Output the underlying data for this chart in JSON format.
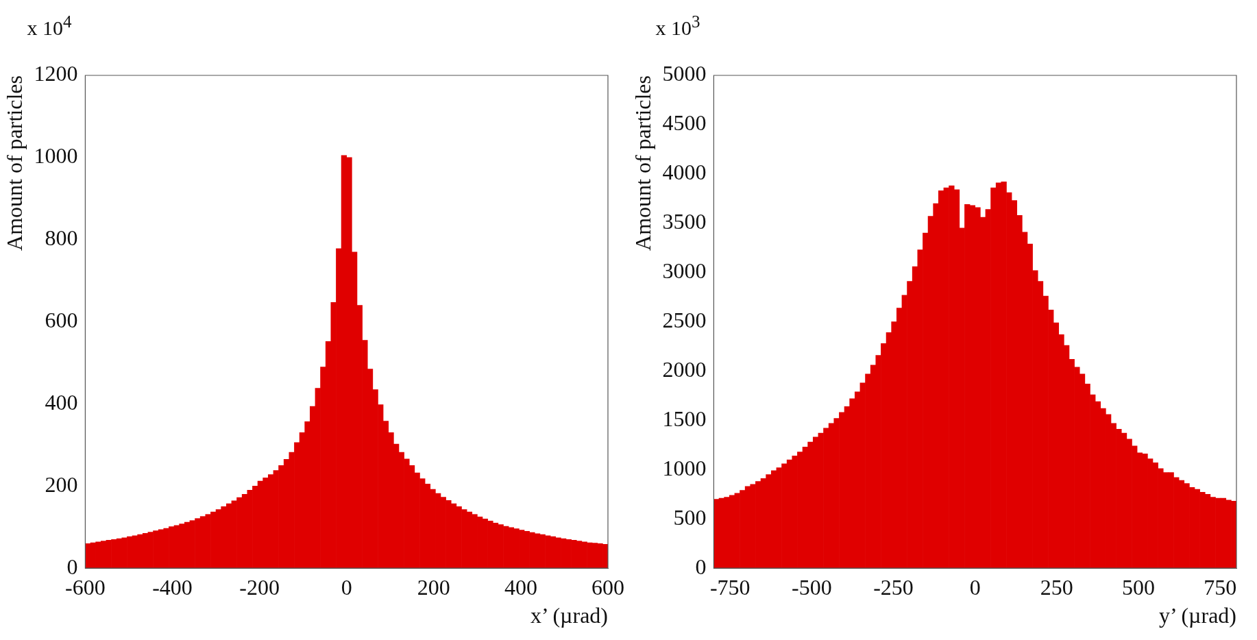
{
  "chart_data": [
    {
      "type": "histogram",
      "xlabel": "x’ (µrad)",
      "ylabel": "Amount of particles",
      "annotations": [
        "x 10$^{4}$"
      ],
      "color": "#e00000",
      "bins": [
        -600,
        -588,
        -576,
        -564,
        -552,
        -540,
        -528,
        -516,
        -504,
        -492,
        -480,
        -468,
        -456,
        -444,
        -432,
        -420,
        -408,
        -396,
        -384,
        -372,
        -360,
        -348,
        -336,
        -324,
        -312,
        -300,
        -288,
        -276,
        -264,
        -252,
        -240,
        -228,
        -216,
        -204,
        -192,
        -180,
        -168,
        -156,
        -144,
        -132,
        -120,
        -108,
        -96,
        -84,
        -72,
        -60,
        -48,
        -36,
        -24,
        -12,
        0,
        12,
        24,
        36,
        48,
        60,
        72,
        84,
        96,
        108,
        120,
        132,
        144,
        156,
        168,
        180,
        192,
        204,
        216,
        228,
        240,
        252,
        264,
        276,
        288,
        300,
        312,
        324,
        336,
        348,
        360,
        372,
        384,
        396,
        408,
        420,
        432,
        444,
        456,
        468,
        480,
        492,
        504,
        516,
        528,
        540,
        552,
        564,
        576,
        588,
        600
      ],
      "values": [
        60,
        62,
        64,
        66,
        68,
        70,
        72,
        74,
        77,
        79,
        82,
        85,
        88,
        91,
        94,
        97,
        101,
        104,
        108,
        112,
        116,
        121,
        126,
        131,
        137,
        143,
        150,
        157,
        164,
        172,
        180,
        190,
        200,
        212,
        220,
        228,
        238,
        250,
        265,
        282,
        306,
        330,
        357,
        394,
        438,
        490,
        552,
        647,
        778,
        1005,
        1000,
        770,
        640,
        555,
        485,
        435,
        398,
        358,
        330,
        302,
        282,
        266,
        250,
        232,
        218,
        205,
        192,
        182,
        173,
        165,
        157,
        150,
        143,
        137,
        131,
        125,
        120,
        115,
        110,
        106,
        102,
        99,
        96,
        93,
        90,
        87,
        84,
        82,
        79,
        77,
        74,
        72,
        70,
        68,
        66,
        64,
        62,
        61,
        60,
        58
      ],
      "xlim": [
        -600,
        600
      ],
      "xticks": [
        -600,
        -400,
        -200,
        0,
        200,
        400,
        600
      ],
      "ylim": [
        0,
        1200
      ],
      "yticks": [
        0,
        200,
        400,
        600,
        800,
        1000,
        1200
      ]
    },
    {
      "type": "histogram",
      "xlabel": "y’ (µrad)",
      "ylabel": "Amount of particles",
      "annotations": [
        "x 10$^{3}$"
      ],
      "color": "#e00000",
      "bins": [
        -800,
        -784,
        -768,
        -752,
        -736,
        -720,
        -704,
        -688,
        -672,
        -656,
        -640,
        -624,
        -608,
        -592,
        -576,
        -560,
        -544,
        -528,
        -512,
        -496,
        -480,
        -464,
        -448,
        -432,
        -416,
        -400,
        -384,
        -368,
        -352,
        -336,
        -320,
        -304,
        -288,
        -272,
        -256,
        -240,
        -224,
        -208,
        -192,
        -176,
        -160,
        -144,
        -128,
        -112,
        -96,
        -80,
        -64,
        -48,
        -32,
        -16,
        0,
        16,
        32,
        48,
        64,
        80,
        96,
        112,
        128,
        144,
        160,
        176,
        192,
        208,
        224,
        240,
        256,
        272,
        288,
        304,
        320,
        336,
        352,
        368,
        384,
        400,
        416,
        432,
        448,
        464,
        480,
        496,
        512,
        528,
        544,
        560,
        576,
        592,
        608,
        624,
        640,
        656,
        672,
        688,
        704,
        720,
        736,
        752,
        768,
        784,
        800
      ],
      "values": [
        700,
        710,
        720,
        740,
        760,
        790,
        830,
        850,
        880,
        910,
        950,
        990,
        1020,
        1060,
        1100,
        1140,
        1180,
        1230,
        1280,
        1330,
        1370,
        1420,
        1470,
        1520,
        1580,
        1640,
        1720,
        1790,
        1880,
        1970,
        2060,
        2160,
        2280,
        2390,
        2500,
        2640,
        2770,
        2910,
        3060,
        3230,
        3400,
        3570,
        3700,
        3830,
        3860,
        3880,
        3840,
        3450,
        3690,
        3680,
        3660,
        3560,
        3640,
        3860,
        3910,
        3920,
        3810,
        3730,
        3580,
        3410,
        3290,
        3020,
        2910,
        2760,
        2620,
        2490,
        2370,
        2260,
        2120,
        2040,
        1970,
        1870,
        1760,
        1690,
        1620,
        1560,
        1470,
        1410,
        1370,
        1310,
        1240,
        1170,
        1160,
        1110,
        1070,
        1010,
        970,
        970,
        920,
        890,
        860,
        820,
        800,
        770,
        750,
        720,
        710,
        710,
        690,
        680
      ],
      "xlim": [
        -800,
        800
      ],
      "xticks": [
        -750,
        -500,
        -250,
        0,
        250,
        500,
        750
      ],
      "ylim": [
        0,
        5000
      ],
      "yticks": [
        0,
        500,
        1000,
        1500,
        2000,
        2500,
        3000,
        3500,
        4000,
        4500,
        5000
      ]
    }
  ]
}
